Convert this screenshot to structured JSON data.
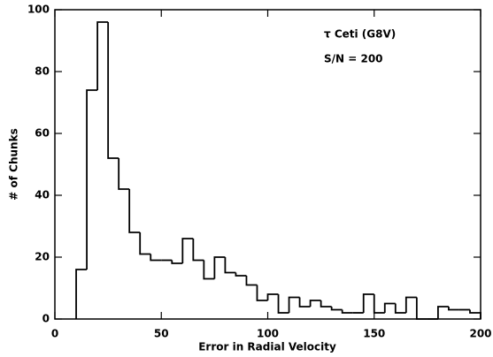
{
  "chart_data": {
    "type": "histogram",
    "xlabel": "Error in Radial Velocity",
    "ylabel": "# of Chunks",
    "annotations": [
      "τ Ceti  (G8V)",
      "S/N = 200"
    ],
    "bins": [
      10,
      15,
      20,
      25,
      30,
      35,
      40,
      45,
      50,
      55,
      60,
      65,
      70,
      75,
      80,
      85,
      90,
      95,
      100,
      105,
      110,
      115,
      120,
      125,
      130,
      135,
      140,
      145,
      150,
      155,
      160,
      165,
      170,
      175,
      180,
      185,
      190,
      195,
      200
    ],
    "values": [
      16,
      74,
      96,
      52,
      42,
      28,
      21,
      19,
      19,
      18,
      26,
      19,
      13,
      20,
      15,
      14,
      11,
      6,
      8,
      2,
      7,
      4,
      6,
      4,
      3,
      2,
      2,
      8,
      2,
      5,
      2,
      7,
      0,
      0,
      4,
      3,
      3,
      2
    ],
    "color": "#000000",
    "xlim": [
      0,
      200
    ],
    "xticks": [
      0,
      50,
      100,
      150,
      200
    ],
    "ylim": [
      0,
      100
    ],
    "yticks": [
      0,
      20,
      40,
      60,
      80,
      100
    ]
  }
}
